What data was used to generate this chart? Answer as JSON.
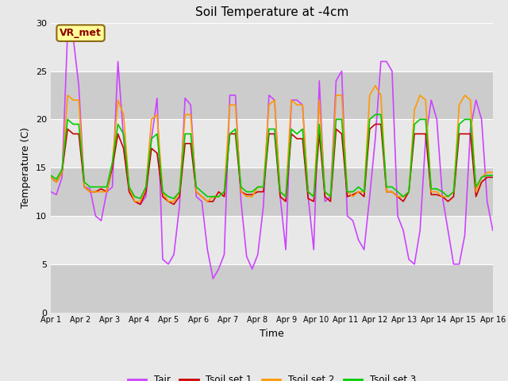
{
  "title": "Soil Temperature at -4cm",
  "xlabel": "Time",
  "ylabel": "Temperature (C)",
  "ylim": [
    0,
    30
  ],
  "xlim": [
    0,
    15
  ],
  "xtick_labels": [
    "Apr 1",
    "Apr 2",
    "Apr 3",
    "Apr 4",
    "Apr 5",
    "Apr 6",
    "Apr 7",
    "Apr 8",
    "Apr 9",
    "Apr 10",
    "Apr 11",
    "Apr 12",
    "Apr 13",
    "Apr 14",
    "Apr 15",
    "Apr 16"
  ],
  "ytick_values": [
    0,
    5,
    10,
    15,
    20,
    25,
    30
  ],
  "fig_bg_color": "#e8e8e8",
  "plot_bg_color": "#d8d8d8",
  "band_color_dark": "#cccccc",
  "band_color_light": "#e8e8e8",
  "grid_color": "#ffffff",
  "annotation_text": "VR_met",
  "annotation_box_color": "#ffff99",
  "annotation_box_edge_color": "#8b6914",
  "annotation_text_color": "#8b0000",
  "colors": {
    "Tair": "#cc44ff",
    "Tsoil_set1": "#cc0000",
    "Tsoil_set2": "#ff9900",
    "Tsoil_set3": "#00cc00"
  },
  "legend_labels": [
    "Tair",
    "Tsoil set 1",
    "Tsoil set 2",
    "Tsoil set 3"
  ],
  "Tair": [
    12.5,
    12.2,
    14.0,
    29.0,
    28.5,
    23.5,
    13.0,
    12.8,
    10.0,
    9.5,
    12.5,
    13.0,
    26.0,
    18.0,
    13.0,
    11.5,
    11.2,
    12.0,
    18.0,
    22.2,
    5.5,
    5.0,
    6.0,
    11.0,
    22.2,
    21.5,
    12.0,
    11.5,
    6.5,
    3.5,
    4.5,
    6.0,
    22.5,
    22.5,
    11.5,
    5.8,
    4.5,
    6.0,
    11.0,
    22.5,
    22.0,
    12.0,
    6.5,
    22.0,
    22.0,
    21.5,
    12.0,
    6.5,
    24.0,
    11.5,
    12.0,
    24.0,
    25.0,
    10.0,
    9.5,
    7.5,
    6.5,
    12.0,
    18.0,
    26.0,
    26.0,
    25.0,
    10.0,
    8.5,
    5.5,
    5.0,
    8.5,
    18.0,
    22.0,
    20.0,
    12.0,
    8.5,
    5.0,
    5.0,
    8.0,
    19.0,
    22.0,
    20.0,
    11.5,
    8.5
  ],
  "Tsoil1": [
    14.0,
    13.5,
    14.5,
    19.0,
    18.5,
    18.5,
    13.0,
    12.5,
    12.5,
    12.8,
    12.5,
    15.0,
    18.5,
    17.0,
    12.5,
    11.5,
    11.2,
    12.5,
    17.0,
    16.5,
    12.0,
    11.5,
    11.2,
    12.0,
    17.5,
    17.5,
    12.5,
    12.0,
    11.5,
    11.5,
    12.5,
    12.0,
    18.5,
    18.5,
    12.5,
    12.2,
    12.2,
    12.5,
    12.5,
    18.5,
    18.5,
    12.0,
    11.5,
    18.5,
    18.0,
    18.0,
    11.8,
    11.5,
    18.5,
    12.0,
    11.5,
    19.0,
    18.5,
    12.0,
    12.2,
    12.5,
    12.0,
    19.0,
    19.5,
    19.5,
    12.5,
    12.5,
    12.0,
    11.5,
    12.5,
    18.5,
    18.5,
    18.5,
    12.2,
    12.2,
    12.0,
    11.5,
    12.0,
    18.5,
    18.5,
    18.5,
    12.0,
    13.5,
    14.0,
    14.0
  ],
  "Tsoil2": [
    14.0,
    13.5,
    14.5,
    22.5,
    22.0,
    22.0,
    13.0,
    12.5,
    12.5,
    12.5,
    12.5,
    15.5,
    22.0,
    20.5,
    13.0,
    11.5,
    11.5,
    13.0,
    20.0,
    20.5,
    12.5,
    11.5,
    11.5,
    12.5,
    20.5,
    20.5,
    12.5,
    12.0,
    11.5,
    12.0,
    12.0,
    12.5,
    21.5,
    21.5,
    12.5,
    12.0,
    12.0,
    13.0,
    13.0,
    21.5,
    22.0,
    12.5,
    12.0,
    22.0,
    21.5,
    21.5,
    12.5,
    12.0,
    22.0,
    12.5,
    12.0,
    22.5,
    22.5,
    12.5,
    12.0,
    12.5,
    12.5,
    22.5,
    23.5,
    22.5,
    12.5,
    12.5,
    12.0,
    12.0,
    12.5,
    21.0,
    22.5,
    22.0,
    12.5,
    12.5,
    12.0,
    12.0,
    12.5,
    21.5,
    22.5,
    22.0,
    12.5,
    14.0,
    14.5,
    14.5
  ],
  "Tsoil3": [
    14.2,
    13.8,
    14.8,
    20.0,
    19.5,
    19.5,
    13.5,
    13.0,
    13.0,
    13.0,
    13.0,
    15.5,
    19.5,
    18.5,
    13.0,
    12.0,
    11.8,
    13.0,
    18.0,
    18.5,
    12.5,
    12.0,
    11.8,
    12.5,
    18.5,
    18.5,
    13.0,
    12.5,
    12.0,
    12.0,
    12.0,
    12.5,
    18.5,
    19.0,
    13.0,
    12.5,
    12.5,
    13.0,
    13.0,
    19.0,
    19.0,
    12.5,
    12.0,
    19.0,
    18.5,
    19.0,
    12.5,
    12.0,
    19.5,
    12.5,
    12.0,
    20.0,
    20.0,
    12.5,
    12.5,
    13.0,
    12.5,
    20.0,
    20.5,
    20.5,
    13.0,
    13.0,
    12.5,
    12.0,
    12.5,
    19.5,
    20.0,
    20.0,
    12.8,
    12.8,
    12.5,
    12.0,
    12.5,
    19.5,
    20.0,
    20.0,
    13.0,
    14.0,
    14.2,
    14.2
  ]
}
